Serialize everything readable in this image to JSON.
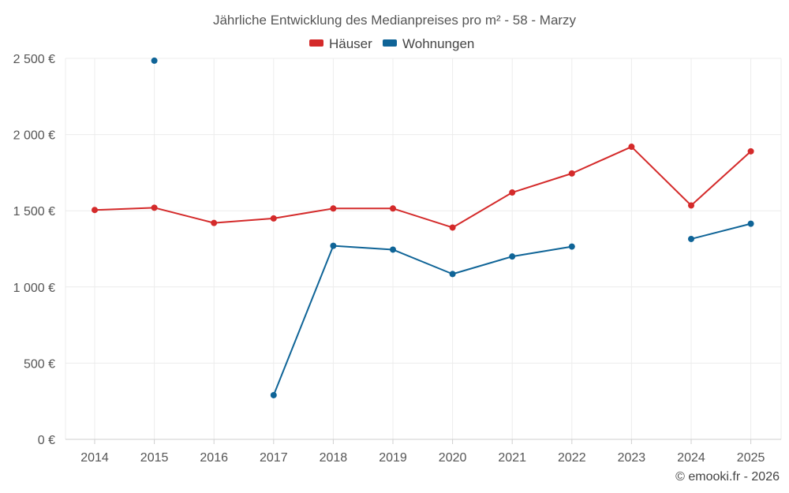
{
  "chart_data": {
    "type": "line",
    "title": "Jährliche Entwicklung des Medianpreises pro m² - 58 - Marzy",
    "xlabel": "",
    "ylabel": "",
    "categories": [
      "2014",
      "2015",
      "2016",
      "2017",
      "2018",
      "2019",
      "2020",
      "2021",
      "2022",
      "2023",
      "2024",
      "2025"
    ],
    "ylim": [
      0,
      2500
    ],
    "yticks": [
      0,
      500,
      1000,
      1500,
      2000,
      2500
    ],
    "ytick_labels": [
      "0 €",
      "500 €",
      "1 000 €",
      "1 500 €",
      "2 000 €",
      "2 500 €"
    ],
    "grid": true,
    "legend_position": "top-center",
    "series": [
      {
        "name": "Häuser",
        "color": "#d42a2a",
        "values": [
          1505,
          1520,
          1420,
          1450,
          1515,
          1515,
          1390,
          1620,
          1745,
          1920,
          1535,
          1890
        ]
      },
      {
        "name": "Wohnungen",
        "color": "#0f6497",
        "values": [
          null,
          2485,
          null,
          290,
          1270,
          1245,
          1085,
          1200,
          1265,
          null,
          1315,
          1415
        ]
      }
    ]
  },
  "credit": "© emooki.fr - 2026"
}
